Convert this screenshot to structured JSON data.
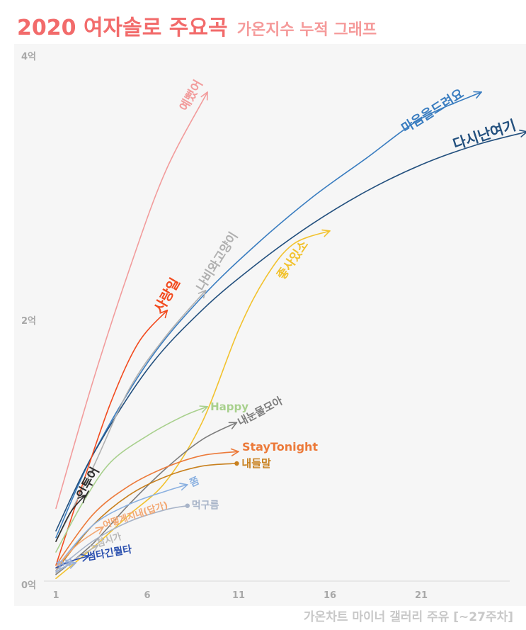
{
  "header": {
    "title": "2020 여자솔로 주요곡",
    "subtitle": "가온지수 누적 그래프"
  },
  "caption": "가온차트 마이너 갤러리 주유 [~27주차]",
  "chart_data": {
    "type": "line",
    "title": "2020 여자솔로 주요곡 가온지수 누적 그래프",
    "xlabel": "",
    "ylabel": "",
    "xlim": [
      1,
      27
    ],
    "ylim": [
      0,
      4
    ],
    "x_ticks": [
      1,
      6,
      11,
      16,
      21
    ],
    "y_ticks": [
      0,
      2,
      4
    ],
    "x_tick_labels": [
      "1",
      "6",
      "11",
      "16",
      "21"
    ],
    "y_tick_labels": [
      "0억",
      "2억",
      "4억"
    ],
    "grid": false,
    "legend": "labels at line ends",
    "series": [
      {
        "name": "예뻤어",
        "color": "#f29c9c",
        "x": [
          1,
          3,
          5,
          7,
          9.3
        ],
        "y": [
          0.55,
          1.5,
          2.35,
          3.1,
          3.7
        ]
      },
      {
        "name": "마음을드려요",
        "color": "#3a7dc0",
        "x": [
          1,
          3,
          6,
          9,
          12,
          15,
          18,
          21,
          24.3
        ],
        "y": [
          0.33,
          0.95,
          1.65,
          2.15,
          2.55,
          2.9,
          3.2,
          3.5,
          3.7
        ]
      },
      {
        "name": "다시난여기",
        "color": "#23507e",
        "x": [
          1,
          3,
          6,
          9,
          12,
          15,
          18,
          21,
          24,
          26.8
        ],
        "y": [
          0.38,
          0.95,
          1.6,
          2.05,
          2.4,
          2.7,
          2.95,
          3.15,
          3.3,
          3.4
        ]
      },
      {
        "name": "사랑일",
        "color": "#f24a1e",
        "x": [
          1,
          2.5,
          4,
          5.5,
          7.1
        ],
        "y": [
          0.12,
          0.75,
          1.35,
          1.8,
          2.05
        ]
      },
      {
        "name": "나비와고양이",
        "color": "#b0b0b0",
        "x": [
          1,
          3,
          5,
          7,
          9.2
        ],
        "y": [
          0.3,
          0.85,
          1.45,
          1.85,
          2.2
        ]
      },
      {
        "name": "좋사있소",
        "color": "#f2c22e",
        "x": [
          1,
          3,
          5,
          7,
          9,
          11,
          12.5,
          14,
          16
        ],
        "y": [
          0.02,
          0.25,
          0.5,
          0.75,
          1.2,
          1.9,
          2.3,
          2.55,
          2.65
        ]
      },
      {
        "name": "Happy",
        "color": "#a8d08d",
        "x": [
          1,
          2.5,
          4,
          6,
          8,
          9.3
        ],
        "y": [
          0.22,
          0.6,
          0.9,
          1.1,
          1.25,
          1.32
        ]
      },
      {
        "name": "내눈물모아",
        "color": "#7d7d7d",
        "x": [
          1,
          3,
          5,
          7,
          9,
          10.9
        ],
        "y": [
          0.05,
          0.28,
          0.58,
          0.85,
          1.07,
          1.2
        ]
      },
      {
        "name": "인투어",
        "color": "#2d2d2d",
        "x": [
          1,
          1.8,
          2.6
        ],
        "y": [
          0.3,
          0.52,
          0.65
        ]
      },
      {
        "name": "StayTonight",
        "color": "#ec7a3a",
        "x": [
          1,
          3,
          5,
          7,
          9,
          11
        ],
        "y": [
          0.12,
          0.5,
          0.72,
          0.86,
          0.95,
          0.98
        ]
      },
      {
        "name": "내들말",
        "color": "#c8801e",
        "x": [
          1,
          3,
          5,
          7,
          9,
          10.9
        ],
        "y": [
          0.08,
          0.42,
          0.65,
          0.79,
          0.87,
          0.89
        ]
      },
      {
        "name": "쫌",
        "color": "#8ab0e0",
        "x": [
          1,
          3,
          5,
          7,
          8.2
        ],
        "y": [
          0.1,
          0.42,
          0.58,
          0.68,
          0.73
        ]
      },
      {
        "name": "먹구름",
        "color": "#a8b4c8",
        "x": [
          1,
          3,
          5,
          7,
          8.2
        ],
        "y": [
          0.08,
          0.3,
          0.45,
          0.54,
          0.57
        ]
      },
      {
        "name": "어떻게지내(답가)",
        "color": "#f3a772",
        "x": [
          1,
          2.2,
          3.6
        ],
        "y": [
          0.1,
          0.28,
          0.41
        ]
      },
      {
        "name": "잠시가",
        "color": "#b8b8b8",
        "x": [
          1,
          2.2,
          3.3
        ],
        "y": [
          0.06,
          0.18,
          0.27
        ]
      },
      {
        "name": "썸타긴뭘타",
        "color": "#2a4fae",
        "x": [
          1,
          1.8,
          2.8
        ],
        "y": [
          0.1,
          0.15,
          0.19
        ]
      },
      {
        "name": "한부",
        "color": "#9ab0d8",
        "x": [
          1,
          1.5,
          2.1
        ],
        "y": [
          0.07,
          0.11,
          0.14
        ]
      }
    ]
  },
  "series_labels": [
    {
      "text": "예뻤어",
      "color": "#f29c9c",
      "size": 17
    },
    {
      "text": "마음을드려요",
      "color": "#3a7dc0",
      "size": 18
    },
    {
      "text": "다시난여기",
      "color": "#23507e",
      "size": 20
    },
    {
      "text": "사랑일",
      "color": "#f24a1e",
      "size": 19
    },
    {
      "text": "나비와고양이",
      "color": "#b0b0b0",
      "size": 17
    },
    {
      "text": "좋사있소",
      "color": "#f2c22e",
      "size": 17
    },
    {
      "text": "Happy",
      "color": "#a8d08d",
      "size": 15
    },
    {
      "text": "내눈물모아",
      "color": "#7d7d7d",
      "size": 15
    },
    {
      "text": "인투어",
      "color": "#2d2d2d",
      "size": 17
    },
    {
      "text": "StayTonight",
      "color": "#ec7a3a",
      "size": 16
    },
    {
      "text": "내들말",
      "color": "#c8801e",
      "size": 15
    },
    {
      "text": "쫌",
      "color": "#8ab0e0",
      "size": 14
    },
    {
      "text": "먹구름",
      "color": "#a8b4c8",
      "size": 14
    },
    {
      "text": "어떻게지내(답가)",
      "color": "#f3a772",
      "size": 13
    },
    {
      "text": "잠시가",
      "color": "#b8b8b8",
      "size": 13
    },
    {
      "text": "썸타긴뭘타",
      "color": "#2a4fae",
      "size": 14
    },
    {
      "text": "한부",
      "color": "#9ab0d8",
      "size": 13
    }
  ]
}
